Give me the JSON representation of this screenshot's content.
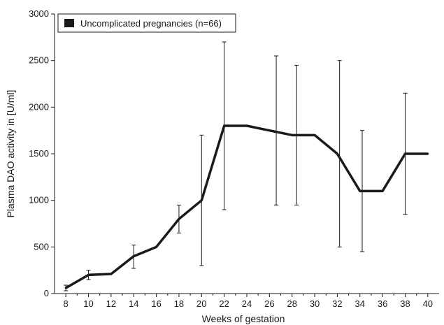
{
  "chart_data": {
    "type": "line",
    "xlabel": "Weeks of gestation",
    "ylabel": "Plasma DAO activity in [U/ml]",
    "xticks": [
      8,
      10,
      12,
      14,
      16,
      18,
      20,
      22,
      24,
      26,
      28,
      30,
      32,
      34,
      36,
      38,
      40
    ],
    "yticks": [
      0,
      500,
      1000,
      1500,
      2000,
      2500,
      3000
    ],
    "xlim": [
      7,
      41
    ],
    "ylim": [
      0,
      3000
    ],
    "grid": false,
    "legend_position": "top-left",
    "series": [
      {
        "name": "Uncomplicated pregnancies (n=66)",
        "color": "#1a1a1a",
        "x": [
          8,
          10,
          12,
          14,
          16,
          18,
          20,
          22,
          24,
          26,
          28,
          30,
          32,
          34,
          36,
          38,
          40
        ],
        "y": [
          60,
          200,
          210,
          400,
          500,
          800,
          1000,
          1800,
          1800,
          1750,
          1700,
          1700,
          1500,
          1100,
          1100,
          1500,
          1500
        ],
        "error_bars": [
          {
            "x": 8,
            "low": 30,
            "high": 90
          },
          {
            "x": 10,
            "low": 150,
            "high": 250
          },
          {
            "x": 14,
            "low": 270,
            "high": 520
          },
          {
            "x": 18,
            "low": 650,
            "high": 950
          },
          {
            "x": 20,
            "low": 300,
            "high": 1700
          },
          {
            "x": 22,
            "low": 900,
            "high": 2700
          },
          {
            "x": 26.6,
            "low": 950,
            "high": 2550
          },
          {
            "x": 28.4,
            "low": 950,
            "high": 2450
          },
          {
            "x": 32.2,
            "low": 500,
            "high": 2500
          },
          {
            "x": 34.2,
            "low": 450,
            "high": 1750
          },
          {
            "x": 38,
            "low": 850,
            "high": 2150
          }
        ]
      }
    ]
  }
}
